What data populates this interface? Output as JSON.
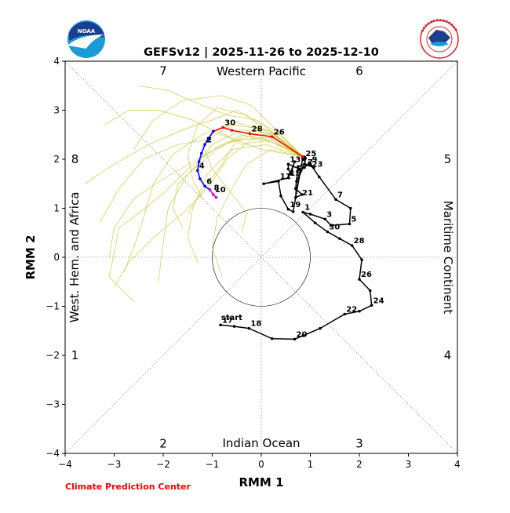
{
  "chart_data": {
    "type": "line",
    "title": "GEFSv12 | 2025-11-26 to 2025-12-10",
    "xlabel": "RMM 1",
    "ylabel": "RMM 2",
    "xlim": [
      -4,
      4
    ],
    "ylim": [
      -4,
      4
    ],
    "xticks": [
      "−4",
      "−3",
      "−2",
      "−1",
      "0",
      "1",
      "2",
      "3",
      "4"
    ],
    "yticks": [
      "−4",
      "−3",
      "−2",
      "−1",
      "0",
      "1",
      "2",
      "3",
      "4"
    ],
    "grid": false,
    "unit_circle_radius": 1,
    "phase_numbers": [
      {
        "label": "7",
        "x": -2.0,
        "y": 3.8
      },
      {
        "label": "6",
        "x": 2.0,
        "y": 3.8
      },
      {
        "label": "8",
        "x": -3.8,
        "y": 2.0
      },
      {
        "label": "5",
        "x": 3.8,
        "y": 2.0
      },
      {
        "label": "1",
        "x": -3.8,
        "y": -2.0
      },
      {
        "label": "4",
        "x": 3.8,
        "y": -2.0
      },
      {
        "label": "2",
        "x": -2.0,
        "y": -3.8
      },
      {
        "label": "3",
        "x": 2.0,
        "y": -3.8
      }
    ],
    "region_labels": {
      "top": "Western Pacific",
      "bottom": "Indian Ocean",
      "left": "West. Hem. and Africa",
      "right": "Maritime Continent"
    },
    "start_label": {
      "text": "start",
      "x": -0.82,
      "y": -1.28
    },
    "observed": {
      "color": "#000000",
      "points": [
        [
          -0.83,
          -1.38
        ],
        [
          -0.55,
          -1.41
        ],
        [
          -0.25,
          -1.45
        ],
        [
          0.22,
          -1.66
        ],
        [
          0.68,
          -1.67
        ],
        [
          0.85,
          -1.6
        ],
        [
          1.2,
          -1.45
        ],
        [
          1.7,
          -1.16
        ],
        [
          2.0,
          -1.1
        ],
        [
          2.25,
          -0.98
        ],
        [
          2.22,
          -0.68
        ],
        [
          2.0,
          -0.45
        ],
        [
          2.05,
          -0.05
        ],
        [
          1.85,
          0.24
        ],
        [
          1.6,
          0.38
        ],
        [
          1.35,
          0.52
        ],
        [
          1.1,
          0.7
        ],
        [
          0.85,
          0.92
        ],
        [
          1.0,
          0.88
        ],
        [
          1.3,
          0.78
        ],
        [
          1.42,
          0.65
        ],
        [
          1.8,
          0.68
        ],
        [
          1.82,
          1.0
        ],
        [
          1.52,
          1.18
        ],
        [
          1.18,
          1.64
        ],
        [
          1.0,
          1.9
        ],
        [
          0.86,
          1.84
        ],
        [
          0.72,
          1.55
        ],
        [
          0.7,
          1.22
        ],
        [
          0.83,
          1.28
        ],
        [
          0.7,
          1.4
        ],
        [
          0.75,
          1.85
        ],
        [
          0.88,
          1.9
        ],
        [
          1.07,
          1.83
        ],
        [
          0.98,
          1.93
        ],
        [
          0.88,
          1.83
        ],
        [
          0.78,
          1.8
        ],
        [
          0.55,
          1.9
        ],
        [
          0.55,
          1.8
        ],
        [
          0.6,
          1.7
        ],
        [
          0.68,
          1.95
        ],
        [
          0.55,
          1.62
        ],
        [
          0.05,
          1.5
        ],
        [
          0.35,
          1.55
        ],
        [
          0.4,
          1.25
        ],
        [
          0.55,
          0.98
        ],
        [
          0.65,
          0.93
        ],
        [
          0.85,
          2.05
        ],
        [
          0.87,
          2.02
        ]
      ],
      "labels": [
        {
          "text": "17",
          "x": -0.83,
          "y": -1.38
        },
        {
          "text": "18",
          "x": -0.25,
          "y": -1.45
        },
        {
          "text": "20",
          "x": 0.68,
          "y": -1.67
        },
        {
          "text": "22",
          "x": 1.7,
          "y": -1.16
        },
        {
          "text": "24",
          "x": 2.25,
          "y": -0.98
        },
        {
          "text": "26",
          "x": 2.0,
          "y": -0.45
        },
        {
          "text": "28",
          "x": 1.85,
          "y": 0.24
        },
        {
          "text": "30",
          "x": 1.35,
          "y": 0.52
        },
        {
          "text": "1",
          "x": 0.85,
          "y": 0.92
        },
        {
          "text": "3",
          "x": 1.3,
          "y": 0.78
        },
        {
          "text": "5",
          "x": 1.8,
          "y": 0.68
        },
        {
          "text": "7",
          "x": 1.52,
          "y": 1.18
        },
        {
          "text": "9",
          "x": 1.0,
          "y": 1.9
        },
        {
          "text": "11",
          "x": 0.35,
          "y": 1.55
        },
        {
          "text": "13",
          "x": 0.55,
          "y": 1.9
        },
        {
          "text": "15",
          "x": 0.55,
          "y": 1.62
        },
        {
          "text": "17",
          "x": 0.8,
          "y": 1.84
        },
        {
          "text": "19",
          "x": 0.55,
          "y": 0.98
        },
        {
          "text": "21",
          "x": 0.8,
          "y": 1.22
        },
        {
          "text": "23",
          "x": 1.0,
          "y": 1.8
        },
        {
          "text": "25",
          "x": 0.87,
          "y": 2.02
        }
      ]
    },
    "forecast_mean": {
      "segments": [
        {
          "color": "#ff0000",
          "points": [
            [
              0.85,
              2.05
            ],
            [
              0.22,
              2.46
            ],
            [
              -0.23,
              2.52
            ],
            [
              -0.6,
              2.59
            ],
            [
              -0.78,
              2.65
            ],
            [
              -0.98,
              2.57
            ]
          ]
        },
        {
          "color": "#0000ff",
          "points": [
            [
              -0.98,
              2.57
            ],
            [
              -1.08,
              2.42
            ],
            [
              -1.15,
              2.3
            ],
            [
              -1.22,
              2.12
            ],
            [
              -1.27,
              1.95
            ],
            [
              -1.3,
              1.77
            ],
            [
              -1.25,
              1.6
            ],
            [
              -1.15,
              1.45
            ],
            [
              -1.05,
              1.38
            ]
          ]
        },
        {
          "color": "#cc00cc",
          "points": [
            [
              -1.05,
              1.38
            ],
            [
              -0.98,
              1.28
            ],
            [
              -0.92,
              1.22
            ]
          ]
        }
      ],
      "labels": [
        {
          "text": "26",
          "x": 0.22,
          "y": 2.46
        },
        {
          "text": "28",
          "x": -0.23,
          "y": 2.52
        },
        {
          "text": "30",
          "x": -0.78,
          "y": 2.65
        },
        {
          "text": "2",
          "x": -1.15,
          "y": 2.3
        },
        {
          "text": "4",
          "x": -1.3,
          "y": 1.77
        },
        {
          "text": "6",
          "x": -1.15,
          "y": 1.45
        },
        {
          "text": "8",
          "x": -1.0,
          "y": 1.32
        },
        {
          "text": "10",
          "x": -0.98,
          "y": 1.28
        }
      ]
    },
    "ensemble_color": "#c8c832",
    "ensemble_members": [
      [
        [
          0.85,
          2.05
        ],
        [
          0.3,
          2.4
        ],
        [
          -0.3,
          2.9
        ],
        [
          -0.9,
          3.05
        ],
        [
          -1.3,
          2.7
        ],
        [
          -1.5,
          2.1
        ],
        [
          -1.4,
          1.6
        ],
        [
          -1.2,
          1.2
        ]
      ],
      [
        [
          0.85,
          2.05
        ],
        [
          0.2,
          2.55
        ],
        [
          -0.5,
          2.75
        ],
        [
          -1.2,
          2.5
        ],
        [
          -1.8,
          2.1
        ],
        [
          -2.2,
          1.5
        ],
        [
          -2.4,
          0.8
        ],
        [
          -2.6,
          0.2
        ],
        [
          -2.8,
          -0.3
        ]
      ],
      [
        [
          0.85,
          2.05
        ],
        [
          0.1,
          2.3
        ],
        [
          -0.6,
          2.2
        ],
        [
          -1.1,
          1.7
        ],
        [
          -1.4,
          1.0
        ],
        [
          -1.5,
          0.4
        ],
        [
          -1.3,
          -0.1
        ]
      ],
      [
        [
          0.85,
          2.05
        ],
        [
          0.3,
          2.6
        ],
        [
          -0.2,
          3.1
        ],
        [
          -0.8,
          3.3
        ],
        [
          -1.6,
          3.2
        ],
        [
          -2.2,
          2.8
        ],
        [
          -2.6,
          2.2
        ]
      ],
      [
        [
          0.85,
          2.05
        ],
        [
          0.0,
          2.45
        ],
        [
          -0.7,
          2.35
        ],
        [
          -1.3,
          2.0
        ],
        [
          -2.0,
          1.6
        ],
        [
          -2.6,
          1.2
        ],
        [
          -3.0,
          0.6
        ],
        [
          -3.1,
          0.0
        ]
      ],
      [
        [
          0.85,
          2.05
        ],
        [
          0.2,
          2.2
        ],
        [
          -0.3,
          1.9
        ],
        [
          -0.6,
          1.4
        ],
        [
          -0.9,
          0.8
        ],
        [
          -1.0,
          0.2
        ],
        [
          -0.8,
          -0.4
        ]
      ],
      [
        [
          0.85,
          2.05
        ],
        [
          0.4,
          2.5
        ],
        [
          -0.1,
          2.8
        ],
        [
          -0.7,
          2.9
        ],
        [
          -1.2,
          3.1
        ],
        [
          -1.9,
          3.4
        ],
        [
          -2.5,
          3.5
        ]
      ],
      [
        [
          0.85,
          2.05
        ],
        [
          0.1,
          2.65
        ],
        [
          -0.5,
          3.0
        ],
        [
          -1.0,
          2.8
        ],
        [
          -1.6,
          2.6
        ],
        [
          -2.3,
          2.3
        ],
        [
          -3.0,
          1.9
        ],
        [
          -3.6,
          1.5
        ]
      ],
      [
        [
          0.85,
          2.05
        ],
        [
          0.2,
          2.35
        ],
        [
          -0.4,
          2.5
        ],
        [
          -0.9,
          2.2
        ],
        [
          -1.5,
          1.7
        ],
        [
          -1.9,
          1.0
        ],
        [
          -2.0,
          0.3
        ],
        [
          -2.1,
          -0.5
        ]
      ],
      [
        [
          0.85,
          2.05
        ],
        [
          0.3,
          2.45
        ],
        [
          -0.2,
          2.4
        ],
        [
          -0.7,
          2.0
        ],
        [
          -1.1,
          1.4
        ],
        [
          -1.6,
          0.9
        ],
        [
          -2.2,
          0.4
        ],
        [
          -2.7,
          -0.1
        ],
        [
          -3.0,
          -0.6
        ]
      ],
      [
        [
          0.85,
          2.05
        ],
        [
          0.25,
          2.5
        ],
        [
          -0.4,
          2.6
        ],
        [
          -1.0,
          2.3
        ],
        [
          -1.3,
          1.9
        ],
        [
          -1.7,
          1.5
        ],
        [
          -1.8,
          1.0
        ],
        [
          -1.6,
          0.6
        ]
      ],
      [
        [
          0.85,
          2.05
        ],
        [
          0.0,
          2.2
        ],
        [
          -0.8,
          2.5
        ],
        [
          -1.4,
          2.8
        ],
        [
          -2.1,
          3.0
        ],
        [
          -2.7,
          3.0
        ],
        [
          -3.2,
          2.7
        ]
      ],
      [
        [
          0.85,
          2.05
        ],
        [
          0.35,
          2.3
        ],
        [
          -0.1,
          2.65
        ],
        [
          -0.5,
          2.4
        ],
        [
          -0.8,
          1.9
        ],
        [
          -1.1,
          1.5
        ],
        [
          -1.3,
          1.2
        ],
        [
          -1.5,
          0.9
        ]
      ],
      [
        [
          0.85,
          2.05
        ],
        [
          0.15,
          2.6
        ],
        [
          -0.6,
          2.7
        ],
        [
          -1.1,
          2.4
        ],
        [
          -1.7,
          2.3
        ],
        [
          -2.4,
          2.0
        ],
        [
          -2.9,
          1.4
        ],
        [
          -3.3,
          0.7
        ]
      ],
      [
        [
          0.85,
          2.05
        ],
        [
          0.2,
          2.4
        ],
        [
          -0.4,
          2.3
        ],
        [
          -0.9,
          2.6
        ],
        [
          -1.2,
          2.3
        ],
        [
          -1.0,
          1.8
        ],
        [
          -0.6,
          1.3
        ],
        [
          -0.3,
          0.9
        ],
        [
          -0.4,
          0.5
        ]
      ],
      [
        [
          0.85,
          2.05
        ],
        [
          0.3,
          2.55
        ],
        [
          -0.3,
          2.45
        ],
        [
          -0.9,
          2.25
        ],
        [
          -1.5,
          1.8
        ],
        [
          -2.0,
          1.3
        ],
        [
          -2.5,
          0.9
        ],
        [
          -2.9,
          0.6
        ],
        [
          -3.1,
          -0.4
        ],
        [
          -2.6,
          -0.9
        ]
      ]
    ]
  }
}
